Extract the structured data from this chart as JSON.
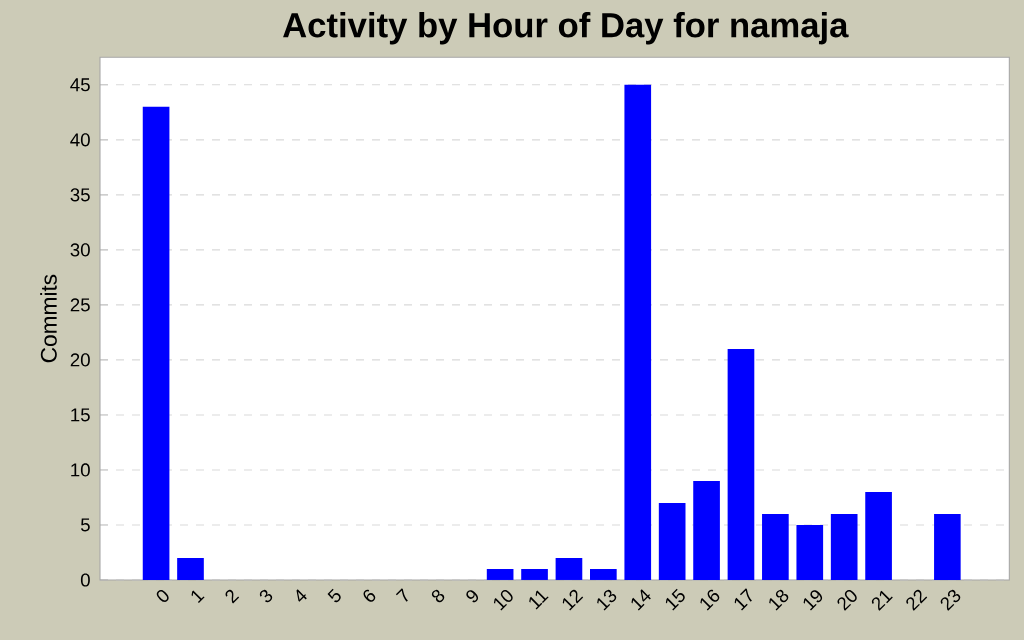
{
  "chart_data": {
    "type": "bar",
    "title": "Activity by Hour of Day for namaja",
    "ylabel": "Commits",
    "categories": [
      "0",
      "1",
      "2",
      "3",
      "4",
      "5",
      "6",
      "7",
      "8",
      "9",
      "10",
      "11",
      "12",
      "13",
      "14",
      "15",
      "16",
      "17",
      "18",
      "19",
      "20",
      "21",
      "22",
      "23"
    ],
    "values": [
      43,
      2,
      0,
      0,
      0,
      0,
      0,
      0,
      0,
      0,
      1,
      1,
      2,
      1,
      45,
      7,
      9,
      21,
      6,
      5,
      6,
      8,
      0,
      6
    ],
    "color": "#0000ff",
    "ylim": [
      0,
      47.5
    ],
    "yticks": [
      0,
      5,
      10,
      15,
      20,
      25,
      30,
      35,
      40,
      45
    ],
    "grid": "y"
  }
}
